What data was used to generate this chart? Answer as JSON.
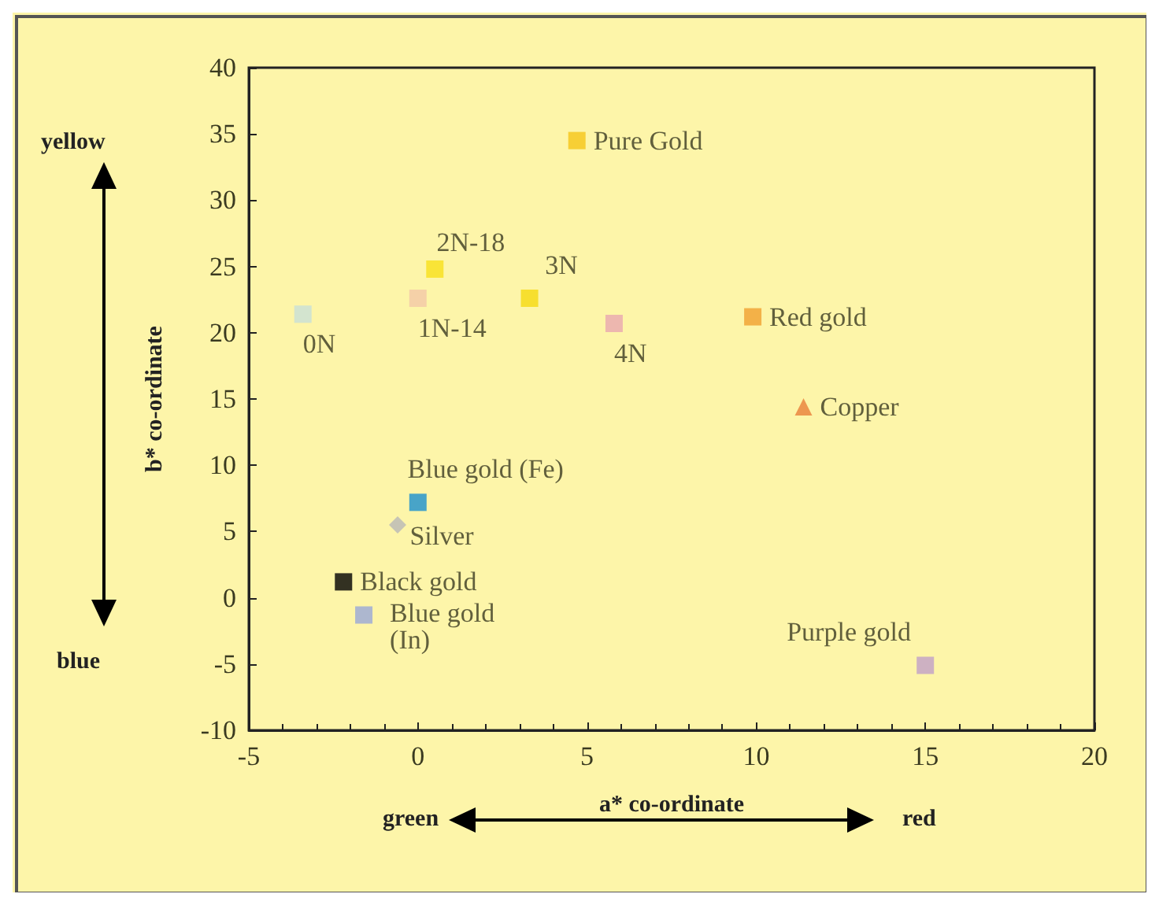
{
  "chart_data": {
    "type": "scatter",
    "xlabel": "a* co-ordinate",
    "ylabel": "b* co-ordinate",
    "xlim": [
      -5,
      20
    ],
    "xticks": [
      -5,
      0,
      5,
      10,
      15,
      20
    ],
    "ylim": [
      -10,
      40
    ],
    "yticks": [
      -10,
      -5,
      0,
      5,
      10,
      15,
      20,
      25,
      30,
      35,
      40
    ],
    "grid": false,
    "legend": false,
    "annotations": [
      "yellow",
      "blue",
      "green",
      "red"
    ],
    "series": [
      {
        "name": "Pure Gold",
        "color": "#f5c518",
        "marker": "square",
        "x": [
          4.7
        ],
        "values": [
          34.5
        ]
      },
      {
        "name": "2N-18",
        "color": "#f7e01a",
        "marker": "square",
        "x": [
          0.5
        ],
        "values": [
          24.8
        ]
      },
      {
        "name": "1N-14",
        "color": "#f2c8a8",
        "marker": "square",
        "x": [
          0
        ],
        "values": [
          22.6
        ]
      },
      {
        "name": "3N",
        "color": "#f5da10",
        "marker": "square",
        "x": [
          3.3
        ],
        "values": [
          22.6
        ]
      },
      {
        "name": "0N",
        "color": "#c8e0d8",
        "marker": "square",
        "x": [
          -3.4
        ],
        "values": [
          21.4
        ]
      },
      {
        "name": "4N",
        "color": "#e8a8b0",
        "marker": "square",
        "x": [
          5.8
        ],
        "values": [
          20.7
        ]
      },
      {
        "name": "Red gold",
        "color": "#f0a030",
        "marker": "square",
        "x": [
          9.9
        ],
        "values": [
          21.2
        ]
      },
      {
        "name": "Copper",
        "color": "#e8803a",
        "marker": "triangle",
        "x": [
          11.4
        ],
        "values": [
          14.4
        ]
      },
      {
        "name": "Blue gold (Fe)",
        "color": "#1a90d0",
        "marker": "square",
        "x": [
          0
        ],
        "values": [
          7.2
        ]
      },
      {
        "name": "Silver",
        "color": "#b8b8b8",
        "marker": "diamond",
        "x": [
          -0.6
        ],
        "values": [
          5.5
        ]
      },
      {
        "name": "Black gold",
        "color": "#000000",
        "marker": "square",
        "x": [
          -2.2
        ],
        "values": [
          1.2
        ]
      },
      {
        "name": "Blue gold (In)",
        "color": "#98a8d8",
        "marker": "square",
        "x": [
          -1.6
        ],
        "values": [
          -1.3
        ]
      },
      {
        "name": "Purple gold",
        "color": "#c0a0c8",
        "marker": "square",
        "x": [
          15
        ],
        "values": [
          -5.1
        ]
      }
    ]
  }
}
